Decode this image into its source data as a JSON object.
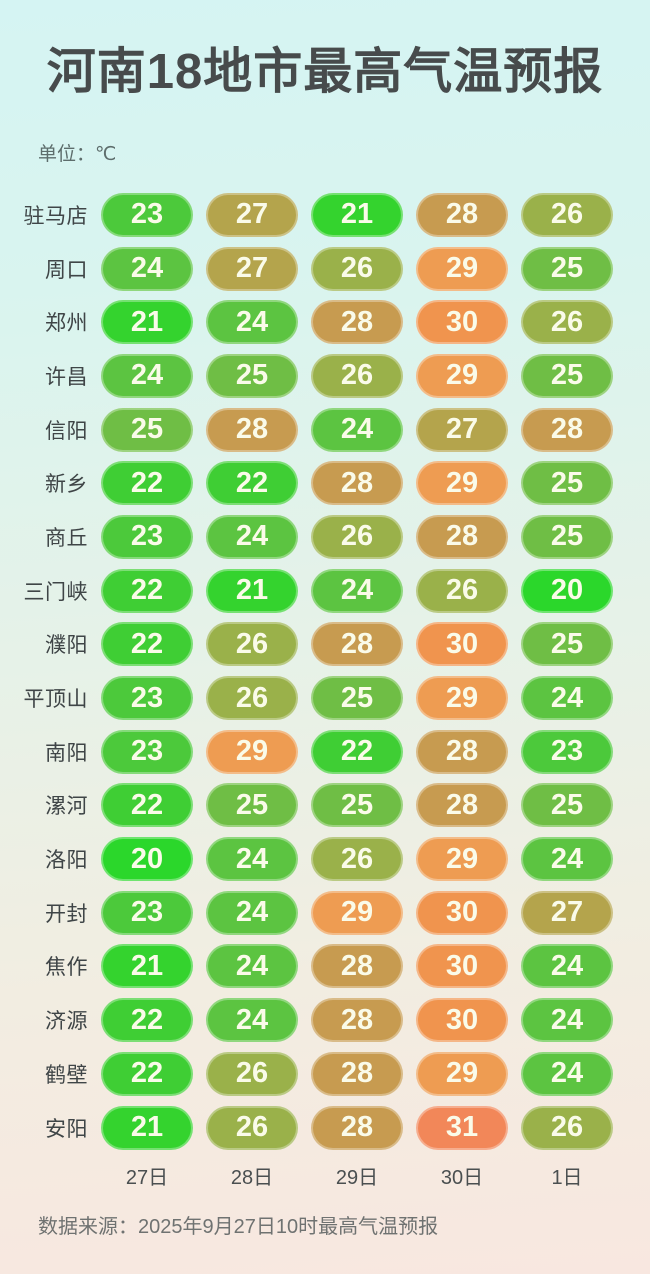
{
  "page": {
    "title": "河南18地市最高气温预报",
    "unit_label": "单位：℃",
    "source_note": "数据来源：2025年9月27日10时最高气温预报"
  },
  "colors": {
    "background_top": "#d5f4f3",
    "background_middle": "#e6f2e8",
    "background_bottom": "#f8e7e0",
    "title_text": "#474b4c",
    "pill_text": "#fafbe9",
    "temp_scale": {
      "20": "#2bd72b",
      "21": "#34d32e",
      "22": "#3fce34",
      "23": "#4cc93b",
      "24": "#5cc441",
      "25": "#6fbe45",
      "26": "#9ab14a",
      "27": "#b4a44c",
      "28": "#c79b50",
      "29": "#ee9c52",
      "30": "#f0944e",
      "31": "#f28759"
    }
  },
  "chart_data": {
    "type": "heatmap",
    "title": "河南18地市最高气温预报",
    "unit": "℃",
    "legend_position": "none",
    "value_range": [
      20,
      31
    ],
    "columns": [
      "27日",
      "28日",
      "29日",
      "30日",
      "1日"
    ],
    "rows": [
      {
        "city": "驻马店",
        "values": [
          23,
          27,
          21,
          28,
          26
        ]
      },
      {
        "city": "周口",
        "values": [
          24,
          27,
          26,
          29,
          25
        ]
      },
      {
        "city": "郑州",
        "values": [
          21,
          24,
          28,
          30,
          26
        ]
      },
      {
        "city": "许昌",
        "values": [
          24,
          25,
          26,
          29,
          25
        ]
      },
      {
        "city": "信阳",
        "values": [
          25,
          28,
          24,
          27,
          28
        ]
      },
      {
        "city": "新乡",
        "values": [
          22,
          22,
          28,
          29,
          25
        ]
      },
      {
        "city": "商丘",
        "values": [
          23,
          24,
          26,
          28,
          25
        ]
      },
      {
        "city": "三门峡",
        "values": [
          22,
          21,
          24,
          26,
          20
        ]
      },
      {
        "city": "濮阳",
        "values": [
          22,
          26,
          28,
          30,
          25
        ]
      },
      {
        "city": "平顶山",
        "values": [
          23,
          26,
          25,
          29,
          24
        ]
      },
      {
        "city": "南阳",
        "values": [
          23,
          29,
          22,
          28,
          23
        ]
      },
      {
        "city": "漯河",
        "values": [
          22,
          25,
          25,
          28,
          25
        ]
      },
      {
        "city": "洛阳",
        "values": [
          20,
          24,
          26,
          29,
          24
        ]
      },
      {
        "city": "开封",
        "values": [
          23,
          24,
          29,
          30,
          27
        ]
      },
      {
        "city": "焦作",
        "values": [
          21,
          24,
          28,
          30,
          24
        ]
      },
      {
        "city": "济源",
        "values": [
          22,
          24,
          28,
          30,
          24
        ]
      },
      {
        "city": "鹤壁",
        "values": [
          22,
          26,
          28,
          29,
          24
        ]
      },
      {
        "city": "安阳",
        "values": [
          21,
          26,
          28,
          31,
          26
        ]
      }
    ]
  }
}
